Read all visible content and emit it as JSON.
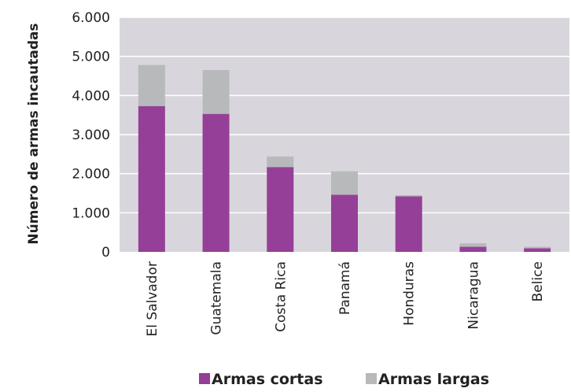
{
  "chart_data": {
    "type": "bar",
    "stacked": true,
    "categories": [
      "El Salvador",
      "Guatemala",
      "Costa Rica",
      "Panamá",
      "Honduras",
      "Nicaragua",
      "Belice"
    ],
    "series": [
      {
        "name": "Armas cortas",
        "color": "#953f98",
        "values": [
          3730,
          3530,
          2170,
          1460,
          1420,
          130,
          90
        ]
      },
      {
        "name": "Armas largas",
        "color": "#b7b9bb",
        "values": [
          1050,
          1120,
          270,
          600,
          30,
          90,
          40
        ]
      }
    ],
    "ylabel": "Número de armas incautadas",
    "ylim": [
      0,
      6000
    ],
    "yticks": [
      0,
      1000,
      2000,
      3000,
      4000,
      5000,
      6000
    ],
    "ytick_labels": [
      "0",
      "1.000",
      "2.000",
      "3.000",
      "4.000",
      "5.000",
      "6.000"
    ],
    "grid": true,
    "plot_background": "#d8d6dc",
    "legend_position": "bottom"
  }
}
